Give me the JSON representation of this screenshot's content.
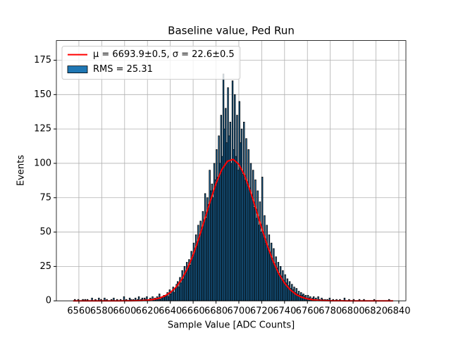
{
  "chart_data": {
    "type": "histogram",
    "title": "Baseline value, Ped Run",
    "xlabel": "Sample Value [ADC Counts]",
    "ylabel": "Events",
    "xlim": [
      6540.3,
      6846.2
    ],
    "ylim": [
      0,
      189.3
    ],
    "xticks": [
      6560,
      6580,
      6600,
      6620,
      6640,
      6660,
      6680,
      6700,
      6720,
      6740,
      6760,
      6780,
      6800,
      6820,
      6840
    ],
    "yticks": [
      0,
      25,
      50,
      75,
      100,
      125,
      150,
      175
    ],
    "grid": true,
    "legend": "upper left",
    "series": [
      {
        "type": "line",
        "name": "μ = 6693.9±0.5, σ = 22.6±0.5",
        "color": "#ff0000",
        "x": [
          6555,
          6560,
          6565,
          6570,
          6575,
          6580,
          6585,
          6590,
          6595,
          6600,
          6605,
          6610,
          6615,
          6620,
          6625,
          6630,
          6635,
          6640,
          6645,
          6650,
          6655,
          6660,
          6665,
          6670,
          6675,
          6680,
          6685,
          6690,
          6695,
          6700,
          6705,
          6710,
          6715,
          6720,
          6725,
          6730,
          6735,
          6740,
          6745,
          6750,
          6755,
          6760,
          6765,
          6770,
          6775,
          6780,
          6785,
          6790,
          6795,
          6800,
          6805,
          6810,
          6815,
          6820,
          6825,
          6830,
          6835
        ],
        "values": [
          0,
          0,
          0,
          0,
          0,
          0,
          0,
          0,
          0,
          0.02,
          0.04,
          0.1,
          0.23,
          0.49,
          0.99,
          1.89,
          3.44,
          6.0,
          9.92,
          15.6,
          23.4,
          33.4,
          45.5,
          58.9,
          72.6,
          85.3,
          95.3,
          101.5,
          102.9,
          99.3,
          91.3,
          79.9,
          66.6,
          52.9,
          40.0,
          28.8,
          19.7,
          12.9,
          8.0,
          4.73,
          2.66,
          1.43,
          0.73,
          0.36,
          0.16,
          0.07,
          0.03,
          0.01,
          0,
          0,
          0,
          0,
          0,
          0,
          0,
          0,
          0
        ]
      },
      {
        "type": "histogram",
        "name": "RMS = 25.31",
        "color": "#1f77b4",
        "edgecolor": "#000000",
        "bins": [
          6556,
          6557,
          6558,
          6559,
          6560,
          6561,
          6562,
          6563,
          6564,
          6565,
          6566,
          6567,
          6568,
          6569,
          6570,
          6571,
          6572,
          6573,
          6574,
          6575,
          6576,
          6577,
          6578,
          6579,
          6580,
          6581,
          6582,
          6583,
          6584,
          6585,
          6586,
          6587,
          6588,
          6589,
          6590,
          6591,
          6592,
          6593,
          6594,
          6595,
          6596,
          6597,
          6598,
          6599,
          6600,
          6601,
          6602,
          6603,
          6604,
          6605,
          6606,
          6607,
          6608,
          6609,
          6610,
          6611,
          6612,
          6613,
          6614,
          6615,
          6616,
          6617,
          6618,
          6619,
          6620,
          6621,
          6622,
          6623,
          6624,
          6625,
          6626,
          6627,
          6628,
          6629,
          6630,
          6631,
          6632,
          6633,
          6634,
          6635,
          6636,
          6637,
          6638,
          6639,
          6640,
          6641,
          6642,
          6643,
          6644,
          6645,
          6646,
          6647,
          6648,
          6649,
          6650,
          6651,
          6652,
          6653,
          6654,
          6655,
          6656,
          6657,
          6658,
          6659,
          6660,
          6661,
          6662,
          6663,
          6664,
          6665,
          6666,
          6667,
          6668,
          6669,
          6670,
          6671,
          6672,
          6673,
          6674,
          6675,
          6676,
          6677,
          6678,
          6679,
          6680,
          6681,
          6682,
          6683,
          6684,
          6685,
          6686,
          6687,
          6688,
          6689,
          6690,
          6691,
          6692,
          6693,
          6694,
          6695,
          6696,
          6697,
          6698,
          6699,
          6700,
          6701,
          6702,
          6703,
          6704,
          6705,
          6706,
          6707,
          6708,
          6709,
          6710,
          6711,
          6712,
          6713,
          6714,
          6715,
          6716,
          6717,
          6718,
          6719,
          6720,
          6721,
          6722,
          6723,
          6724,
          6725,
          6726,
          6727,
          6728,
          6729,
          6730,
          6731,
          6732,
          6733,
          6734,
          6735,
          6736,
          6737,
          6738,
          6739,
          6740,
          6741,
          6742,
          6743,
          6744,
          6745,
          6746,
          6747,
          6748,
          6749,
          6750,
          6751,
          6752,
          6753,
          6754,
          6755,
          6756,
          6757,
          6758,
          6759,
          6760,
          6761,
          6762,
          6763,
          6764,
          6765,
          6766,
          6767,
          6768,
          6769,
          6770,
          6771,
          6772,
          6773,
          6774,
          6775,
          6776,
          6777,
          6778,
          6779,
          6780,
          6781,
          6782,
          6783,
          6784,
          6785,
          6786,
          6787,
          6788,
          6789,
          6790,
          6791,
          6792,
          6793,
          6794,
          6795,
          6796,
          6797,
          6798,
          6799,
          6800,
          6801,
          6802,
          6803,
          6804,
          6805,
          6806,
          6807,
          6808,
          6809,
          6810,
          6811,
          6812,
          6813,
          6814,
          6815,
          6816,
          6817,
          6818,
          6819,
          6820,
          6821,
          6822,
          6823,
          6824,
          6825,
          6826,
          6827,
          6828,
          6829,
          6830,
          6831,
          6832
        ],
        "values": [
          1,
          0,
          0,
          1,
          0,
          0,
          0,
          1,
          0,
          1,
          0,
          1,
          0,
          0,
          0,
          2,
          0,
          0,
          1,
          0,
          0,
          2,
          0,
          1,
          0,
          0,
          2,
          0,
          1,
          0,
          0,
          0,
          1,
          0,
          2,
          0,
          0,
          1,
          0,
          0,
          1,
          0,
          0,
          3,
          0,
          1,
          0,
          0,
          2,
          1,
          0,
          1,
          0,
          2,
          0,
          1,
          3,
          0,
          1,
          2,
          0,
          2,
          1,
          3,
          0,
          1,
          2,
          0,
          3,
          1,
          2,
          1,
          3,
          2,
          5,
          1,
          2,
          3,
          4,
          3,
          4,
          6,
          3,
          8,
          5,
          7,
          10,
          6,
          9,
          12,
          14,
          10,
          17,
          13,
          22,
          16,
          25,
          20,
          28,
          24,
          30,
          26,
          36,
          32,
          42,
          35,
          48,
          40,
          55,
          46,
          58,
          52,
          65,
          57,
          78,
          60,
          75,
          70,
          95,
          80,
          85,
          75,
          100,
          88,
          110,
          90,
          120,
          100,
          135,
          105,
          165,
          125,
          140,
          115,
          155,
          120,
          130,
          100,
          160,
          110,
          150,
          105,
          135,
          95,
          145,
          115,
          125,
          92,
          130,
          88,
          118,
          85,
          110,
          80,
          100,
          75,
          95,
          68,
          88,
          60,
          80,
          55,
          72,
          50,
          90,
          48,
          62,
          42,
          55,
          38,
          48,
          35,
          42,
          30,
          38,
          27,
          32,
          24,
          28,
          20,
          25,
          18,
          22,
          15,
          19,
          13,
          16,
          11,
          14,
          9,
          12,
          8,
          10,
          6,
          9,
          5,
          7,
          4,
          6,
          4,
          5,
          3,
          4,
          2,
          4,
          2,
          3,
          1,
          2,
          3,
          1,
          2,
          0,
          3,
          1,
          0,
          2,
          1,
          0,
          1,
          0,
          1,
          0,
          2,
          0,
          0,
          1,
          0,
          0,
          1,
          0,
          0,
          1,
          0,
          0,
          0,
          2,
          0,
          0,
          0,
          1,
          0,
          0,
          0,
          1,
          0,
          0,
          0,
          0,
          1,
          0,
          0,
          0,
          1,
          0,
          0,
          0,
          0,
          0,
          0,
          0,
          0,
          1,
          0,
          0,
          0,
          0,
          0,
          0,
          0,
          0,
          0,
          0,
          0,
          0,
          1
        ]
      }
    ]
  }
}
